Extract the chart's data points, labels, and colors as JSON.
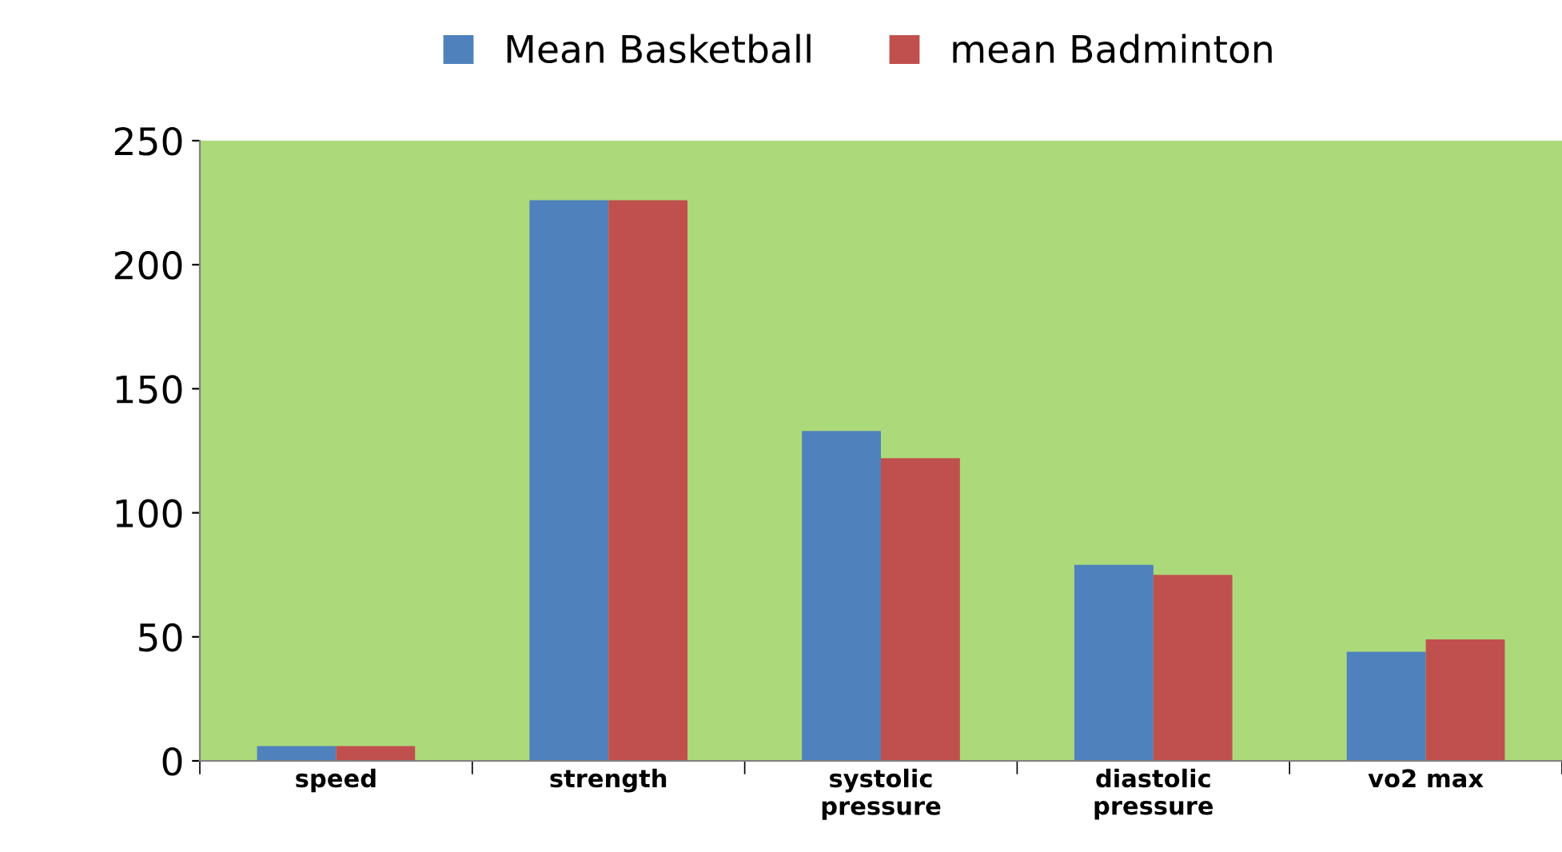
{
  "chart_data": {
    "type": "bar",
    "categories": [
      "speed",
      "strength",
      "systolic\npressure",
      "diastolic\npressure",
      "vo2 max"
    ],
    "series": [
      {
        "name": "Mean Basketball",
        "color": "#4f81bd",
        "values": [
          6,
          226,
          133,
          79,
          44
        ]
      },
      {
        "name": "mean Badminton",
        "color": "#c0504d",
        "values": [
          6,
          226,
          122,
          75,
          49
        ]
      }
    ],
    "ylim": [
      0,
      250
    ],
    "yticks": [
      0,
      50,
      100,
      150,
      200,
      250
    ],
    "grid": false,
    "legend": "top"
  }
}
